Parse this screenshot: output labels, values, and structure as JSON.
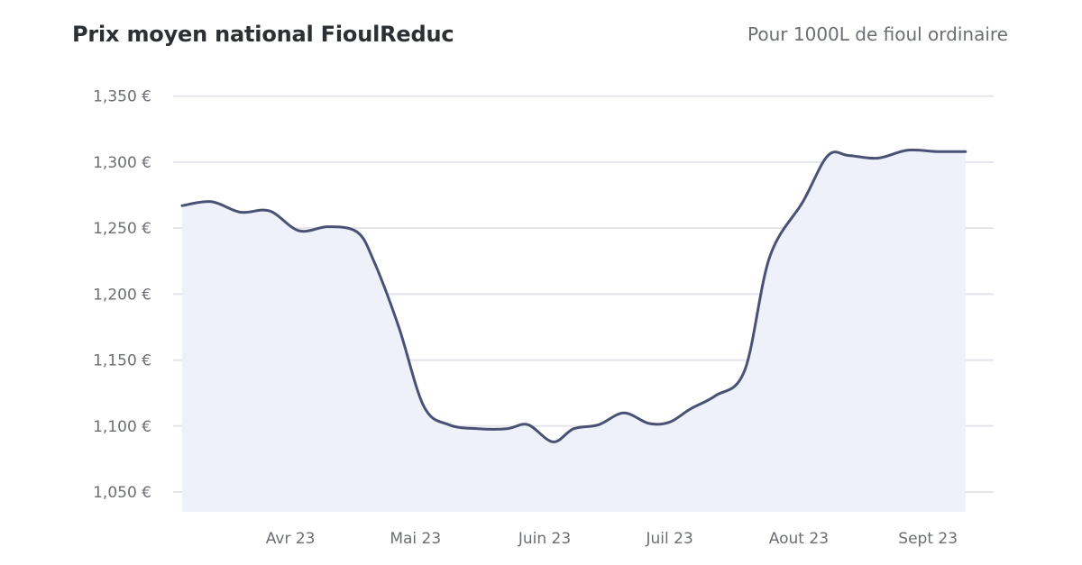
{
  "header": {
    "title": "Prix moyen national FioulReduc",
    "subtitle": "Pour 1000L de fioul ordinaire"
  },
  "colors": {
    "line": "#4a5175",
    "area": "#eff1fa",
    "grid": "#e3e5eb",
    "text": "#6b6e73"
  },
  "chart_data": {
    "type": "area",
    "title": "Prix moyen national FioulReduc",
    "subtitle": "Pour 1000L de fioul ordinaire",
    "xlabel": "",
    "ylabel": "",
    "unit": "€",
    "ylim": [
      1.035,
      1.36
    ],
    "y_ticks": [
      1.35,
      1.3,
      1.25,
      1.2,
      1.15,
      1.1,
      1.05
    ],
    "y_tick_labels": [
      "1,350 €",
      "1,300 €",
      "1,250 €",
      "1,200 €",
      "1,150 €",
      "1,100 €",
      "1,050 €"
    ],
    "x_range": [
      "2023-03-06",
      "2023-09-12"
    ],
    "x_ticks": [
      "2023-04-01",
      "2023-05-01",
      "2023-06-01",
      "2023-07-01",
      "2023-08-01",
      "2023-09-01"
    ],
    "x_tick_labels": [
      "Avr 23",
      "Mai 23",
      "Juin 23",
      "Juil 23",
      "Aout 23",
      "Sept 23"
    ],
    "grid": true,
    "legend": "none",
    "series": [
      {
        "x": [
          "2023-03-06",
          "2023-03-13",
          "2023-03-20",
          "2023-03-27",
          "2023-04-03",
          "2023-04-10",
          "2023-04-17",
          "2023-04-21",
          "2023-04-27",
          "2023-05-03",
          "2023-05-09",
          "2023-05-16",
          "2023-05-23",
          "2023-05-28",
          "2023-06-03",
          "2023-06-08",
          "2023-06-14",
          "2023-06-20",
          "2023-06-26",
          "2023-07-01",
          "2023-07-06",
          "2023-07-12",
          "2023-07-19",
          "2023-07-25",
          "2023-08-02",
          "2023-08-08",
          "2023-08-13",
          "2023-08-20",
          "2023-08-27",
          "2023-09-03",
          "2023-09-10"
        ],
        "values": [
          1.267,
          1.27,
          1.262,
          1.263,
          1.248,
          1.251,
          1.247,
          1.225,
          1.175,
          1.115,
          1.101,
          1.098,
          1.098,
          1.101,
          1.088,
          1.098,
          1.101,
          1.11,
          1.102,
          1.103,
          1.113,
          1.123,
          1.142,
          1.228,
          1.27,
          1.305,
          1.305,
          1.303,
          1.309,
          1.308,
          1.308
        ]
      }
    ]
  }
}
